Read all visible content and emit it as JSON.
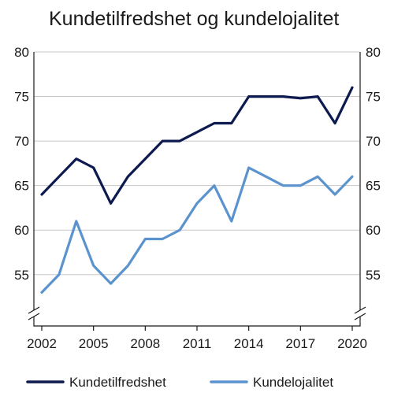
{
  "chart_data": {
    "type": "line",
    "title": "Kundetilfredshet og kundelojalitet",
    "xlabel": "",
    "ylabel": "",
    "x": [
      2002,
      2003,
      2004,
      2005,
      2006,
      2007,
      2008,
      2009,
      2010,
      2011,
      2012,
      2013,
      2014,
      2015,
      2016,
      2017,
      2018,
      2019,
      2020
    ],
    "x_ticks": [
      "2002",
      "2005",
      "2008",
      "2011",
      "2014",
      "2017",
      "2020"
    ],
    "y_ticks": [
      "80",
      "75",
      "70",
      "65",
      "60",
      "55"
    ],
    "ylim": [
      51,
      80
    ],
    "y_axis_break": true,
    "grid": true,
    "legend_position": "bottom",
    "series": [
      {
        "name": "Kundetilfredshet",
        "color": "#0d1a4f",
        "values": [
          64,
          66,
          68,
          67,
          63,
          66,
          68,
          70,
          70,
          71,
          72,
          72,
          75,
          75,
          75,
          74.8,
          75,
          72,
          76
        ]
      },
      {
        "name": "Kundelojalitet",
        "color": "#5b93cf",
        "values": [
          53,
          55,
          61,
          56,
          54,
          56,
          59,
          59,
          60,
          63,
          65,
          61,
          67,
          66,
          65,
          65,
          66,
          64,
          66
        ]
      }
    ]
  }
}
